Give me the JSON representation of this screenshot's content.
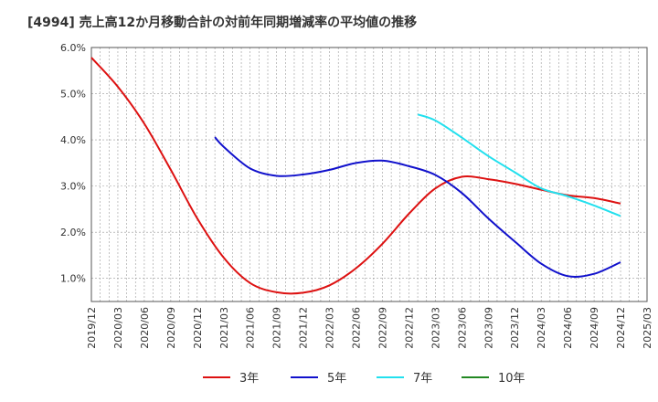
{
  "chart_data": {
    "type": "line",
    "title": "[4994]  売上高12か月移動合計の対前年同期増減率の平均値の推移",
    "xlabel": "",
    "ylabel": "",
    "ylim": [
      0.5,
      6.0
    ],
    "y_ticks": [
      "1.0%",
      "2.0%",
      "3.0%",
      "4.0%",
      "5.0%",
      "6.0%"
    ],
    "y_tick_values": [
      1.0,
      2.0,
      3.0,
      4.0,
      5.0,
      6.0
    ],
    "x_tick_labels": [
      "2019/12",
      "2020/03",
      "2020/06",
      "2020/09",
      "2020/12",
      "2021/03",
      "2021/06",
      "2021/09",
      "2021/12",
      "2022/03",
      "2022/06",
      "2022/09",
      "2022/12",
      "2023/03",
      "2023/06",
      "2023/09",
      "2023/12",
      "2024/03",
      "2024/06",
      "2024/09",
      "2024/12",
      "2025/03"
    ],
    "grid": true,
    "legend_position": "bottom",
    "series": [
      {
        "name": "3年",
        "color": "#dd1111",
        "x": [
          "2019/12",
          "2020/03",
          "2020/06",
          "2020/09",
          "2020/12",
          "2021/03",
          "2021/06",
          "2021/09",
          "2021/12",
          "2022/03",
          "2022/06",
          "2022/09",
          "2022/12",
          "2023/03",
          "2023/06",
          "2023/09",
          "2023/12",
          "2024/03",
          "2024/06",
          "2024/09",
          "2024/12"
        ],
        "values": [
          5.78,
          5.15,
          4.35,
          3.35,
          2.3,
          1.45,
          0.9,
          0.7,
          0.69,
          0.85,
          1.22,
          1.75,
          2.4,
          2.95,
          3.2,
          3.15,
          3.05,
          2.92,
          2.8,
          2.74,
          2.62
        ]
      },
      {
        "name": "5年",
        "color": "#1111cc",
        "x": [
          "2021/02",
          "2021/03",
          "2021/06",
          "2021/09",
          "2021/12",
          "2022/03",
          "2022/06",
          "2022/09",
          "2022/12",
          "2023/03",
          "2023/06",
          "2023/09",
          "2023/12",
          "2024/03",
          "2024/06",
          "2024/09",
          "2024/12"
        ],
        "values": [
          4.06,
          3.85,
          3.38,
          3.22,
          3.25,
          3.35,
          3.5,
          3.55,
          3.43,
          3.24,
          2.85,
          2.3,
          1.8,
          1.32,
          1.05,
          1.1,
          1.35
        ]
      },
      {
        "name": "7年",
        "color": "#22e0ee",
        "x": [
          "2023/01",
          "2023/03",
          "2023/06",
          "2023/09",
          "2023/12",
          "2024/03",
          "2024/06",
          "2024/09",
          "2024/12"
        ],
        "values": [
          4.55,
          4.42,
          4.05,
          3.65,
          3.3,
          2.95,
          2.78,
          2.58,
          2.35
        ]
      },
      {
        "name": "10年",
        "color": "#228822",
        "x": [],
        "values": []
      }
    ]
  }
}
